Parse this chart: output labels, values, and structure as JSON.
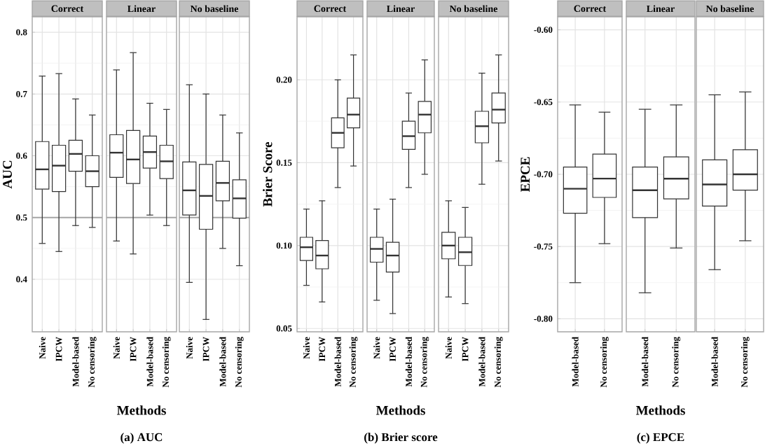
{
  "chart_data": [
    {
      "type": "box",
      "title": "Correct",
      "ylabel": "AUC",
      "categories": [
        "Naive",
        "IPCW",
        "Model-based",
        "No censoring"
      ],
      "color": "#333333",
      "grid": true,
      "ylim": [
        0.315,
        0.825
      ],
      "yticks": [
        0.4,
        0.5,
        0.6,
        0.7,
        0.8
      ],
      "ref_lines": [
        {
          "axis": "y",
          "value": 0.5,
          "color": "#a6a6a6"
        }
      ],
      "boxes": [
        {
          "low": 0.458,
          "q1": 0.546,
          "median": 0.578,
          "q3": 0.623,
          "high": 0.729
        },
        {
          "low": 0.445,
          "q1": 0.542,
          "median": 0.584,
          "q3": 0.617,
          "high": 0.733
        },
        {
          "low": 0.487,
          "q1": 0.575,
          "median": 0.603,
          "q3": 0.625,
          "high": 0.692
        },
        {
          "low": 0.484,
          "q1": 0.55,
          "median": 0.575,
          "q3": 0.6,
          "high": 0.666
        }
      ]
    },
    {
      "type": "box",
      "title": "Linear",
      "xlabel": "Methods",
      "annotations": [
        "(a) AUC"
      ],
      "tick_labels": "x",
      "categories": [
        "Naive",
        "IPCW",
        "Model-based",
        "No censoring"
      ],
      "color": "#333333",
      "grid": true,
      "ylim": [
        0.315,
        0.825
      ],
      "yticks": [
        0.4,
        0.5,
        0.6,
        0.7,
        0.8
      ],
      "ref_lines": [
        {
          "axis": "y",
          "value": 0.5,
          "color": "#a6a6a6"
        }
      ],
      "boxes": [
        {
          "low": 0.462,
          "q1": 0.565,
          "median": 0.605,
          "q3": 0.634,
          "high": 0.739
        },
        {
          "low": 0.441,
          "q1": 0.555,
          "median": 0.594,
          "q3": 0.641,
          "high": 0.767
        },
        {
          "low": 0.504,
          "q1": 0.58,
          "median": 0.606,
          "q3": 0.632,
          "high": 0.685
        },
        {
          "low": 0.487,
          "q1": 0.563,
          "median": 0.591,
          "q3": 0.617,
          "high": 0.675
        }
      ]
    },
    {
      "type": "box",
      "title": "No baseline",
      "tick_labels": "x",
      "categories": [
        "Naive",
        "IPCW",
        "Model-based",
        "No censoring"
      ],
      "color": "#333333",
      "grid": true,
      "ylim": [
        0.315,
        0.825
      ],
      "yticks": [
        0.4,
        0.5,
        0.6,
        0.7,
        0.8
      ],
      "ref_lines": [
        {
          "axis": "y",
          "value": 0.5,
          "color": "#a6a6a6"
        }
      ],
      "boxes": [
        {
          "low": 0.395,
          "q1": 0.504,
          "median": 0.544,
          "q3": 0.59,
          "high": 0.715
        },
        {
          "low": 0.335,
          "q1": 0.481,
          "median": 0.535,
          "q3": 0.586,
          "high": 0.7
        },
        {
          "low": 0.45,
          "q1": 0.527,
          "median": 0.556,
          "q3": 0.591,
          "high": 0.666
        },
        {
          "low": 0.422,
          "q1": 0.499,
          "median": 0.531,
          "q3": 0.561,
          "high": 0.637
        }
      ]
    },
    {
      "type": "box",
      "title": "Correct",
      "ylabel": "Brier Score",
      "categories": [
        "Naive",
        "IPCW",
        "Model-based",
        "No censoring"
      ],
      "color": "#333333",
      "grid": true,
      "ylim": [
        0.048,
        0.238
      ],
      "yticks": [
        0.05,
        {
          "value": 0.1,
          "label": "0.10"
        },
        0.15,
        {
          "value": 0.2,
          "label": "0.20"
        }
      ],
      "boxes": [
        {
          "low": 0.076,
          "q1": 0.091,
          "median": 0.099,
          "q3": 0.105,
          "high": 0.122
        },
        {
          "low": 0.066,
          "q1": 0.086,
          "median": 0.094,
          "q3": 0.103,
          "high": 0.127
        },
        {
          "low": 0.135,
          "q1": 0.159,
          "median": 0.168,
          "q3": 0.177,
          "high": 0.2
        },
        {
          "low": 0.148,
          "q1": 0.171,
          "median": 0.179,
          "q3": 0.189,
          "high": 0.215
        }
      ]
    },
    {
      "type": "box",
      "title": "Linear",
      "xlabel": "Methods",
      "annotations": [
        "(b) Brier score"
      ],
      "tick_labels": "x",
      "categories": [
        "Naive",
        "IPCW",
        "Model-based",
        "No censoring"
      ],
      "color": "#333333",
      "grid": true,
      "ylim": [
        0.048,
        0.238
      ],
      "yticks": [
        0.05,
        0.1,
        0.15,
        0.2
      ],
      "boxes": [
        {
          "low": 0.067,
          "q1": 0.09,
          "median": 0.098,
          "q3": 0.105,
          "high": 0.122
        },
        {
          "low": 0.059,
          "q1": 0.084,
          "median": 0.094,
          "q3": 0.102,
          "high": 0.128
        },
        {
          "low": 0.135,
          "q1": 0.158,
          "median": 0.166,
          "q3": 0.175,
          "high": 0.192
        },
        {
          "low": 0.143,
          "q1": 0.168,
          "median": 0.179,
          "q3": 0.187,
          "high": 0.212
        }
      ]
    },
    {
      "type": "box",
      "title": "No baseline",
      "tick_labels": "x",
      "categories": [
        "Naive",
        "IPCW",
        "Model-based",
        "No censoring"
      ],
      "color": "#333333",
      "grid": true,
      "ylim": [
        0.048,
        0.238
      ],
      "yticks": [
        0.05,
        0.1,
        0.15,
        0.2
      ],
      "boxes": [
        {
          "low": 0.069,
          "q1": 0.092,
          "median": 0.1,
          "q3": 0.108,
          "high": 0.127
        },
        {
          "low": 0.065,
          "q1": 0.088,
          "median": 0.096,
          "q3": 0.105,
          "high": 0.123
        },
        {
          "low": 0.137,
          "q1": 0.162,
          "median": 0.172,
          "q3": 0.181,
          "high": 0.204
        },
        {
          "low": 0.151,
          "q1": 0.174,
          "median": 0.182,
          "q3": 0.192,
          "high": 0.215
        }
      ]
    },
    {
      "type": "box",
      "title": "Correct",
      "ylabel": "EPCE",
      "categories": [
        "Model-based",
        "No censoring"
      ],
      "color": "#333333",
      "grid": true,
      "ylim": [
        -0.809,
        -0.591
      ],
      "yticks": [
        {
          "value": -0.6,
          "label": "-0.60"
        },
        -0.65,
        {
          "value": -0.7,
          "label": "-0.70"
        },
        -0.75,
        {
          "value": -0.8,
          "label": "-0.80"
        }
      ],
      "boxes": [
        {
          "low": -0.775,
          "q1": -0.727,
          "median": -0.71,
          "q3": -0.695,
          "high": -0.652
        },
        {
          "low": -0.748,
          "q1": -0.716,
          "median": -0.703,
          "q3": -0.686,
          "high": -0.657
        }
      ]
    },
    {
      "type": "box",
      "title": "Linear",
      "xlabel": "Methods",
      "annotations": [
        "(c) EPCE"
      ],
      "tick_labels": "x",
      "categories": [
        "Model-based",
        "No censoring"
      ],
      "color": "#333333",
      "grid": true,
      "ylim": [
        -0.809,
        -0.591
      ],
      "yticks": [
        -0.6,
        -0.65,
        -0.7,
        -0.75,
        -0.8
      ],
      "boxes": [
        {
          "low": -0.782,
          "q1": -0.73,
          "median": -0.711,
          "q3": -0.695,
          "high": -0.655
        },
        {
          "low": -0.751,
          "q1": -0.717,
          "median": -0.703,
          "q3": -0.688,
          "high": -0.652
        }
      ]
    },
    {
      "type": "box",
      "title": "No baseline",
      "tick_labels": "x",
      "categories": [
        "Model-based",
        "No censoring"
      ],
      "color": "#333333",
      "grid": true,
      "ylim": [
        -0.809,
        -0.591
      ],
      "yticks": [
        -0.6,
        -0.65,
        -0.7,
        -0.75,
        -0.8
      ],
      "boxes": [
        {
          "low": -0.766,
          "q1": -0.722,
          "median": -0.707,
          "q3": -0.69,
          "high": -0.645
        },
        {
          "low": -0.746,
          "q1": -0.711,
          "median": -0.7,
          "q3": -0.683,
          "high": -0.643
        }
      ]
    }
  ]
}
